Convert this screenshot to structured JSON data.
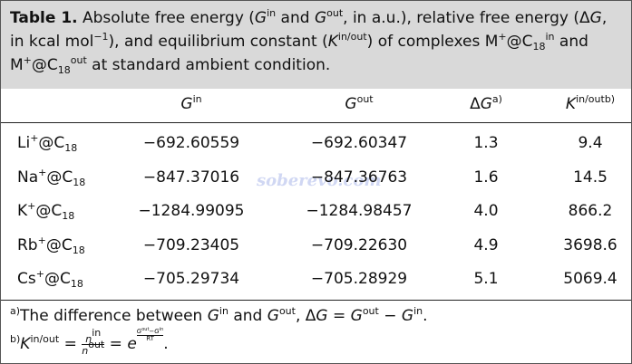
{
  "caption": {
    "label": "Table 1.",
    "parts": [
      " Absolute free energy (",
      "G",
      "in",
      " and ",
      "G",
      "out",
      ", in a.u.), relative free energy (Δ",
      "G",
      ", in kcal mol",
      "−1",
      "), and equilibrium constant (",
      "K",
      "in/out",
      ") of complexes M",
      "+",
      "@C",
      "18",
      "in",
      " and M",
      "+",
      "@C",
      "18",
      "out",
      " at standard ambient condition."
    ]
  },
  "table": {
    "header": [
      [
        "G",
        "in"
      ],
      [
        "G",
        "out"
      ],
      [
        "Δ",
        "G",
        "a)"
      ],
      [
        "K",
        "in/out",
        "b)"
      ]
    ],
    "rows": [
      [
        [
          "Li",
          "+",
          "@C",
          "18"
        ],
        "−692.60559",
        "−692.60347",
        "1.3",
        "9.4"
      ],
      [
        [
          "Na",
          "+",
          "@C",
          "18"
        ],
        "−847.37016",
        "−847.36763",
        "1.6",
        "14.5"
      ],
      [
        [
          "K",
          "+",
          "@C",
          "18"
        ],
        "−1284.99095",
        "−1284.98457",
        "4.0",
        "866.2"
      ],
      [
        [
          "Rb",
          "+",
          "@C",
          "18"
        ],
        "−709.23405",
        "−709.22630",
        "4.9",
        "3698.6"
      ],
      [
        [
          "Cs",
          "+",
          "@C",
          "18"
        ],
        "−705.29734",
        "−705.28929",
        "5.1",
        "5069.4"
      ]
    ]
  },
  "footnotes": {
    "a": [
      "a)",
      "The difference between ",
      "G",
      "in",
      " and ",
      "G",
      "out",
      ", Δ",
      "G",
      " = ",
      "G",
      "out",
      " − ",
      "G",
      "in",
      "."
    ],
    "b": {
      "lhs": [
        "b)",
        "K",
        "in/out",
        " = "
      ],
      "num": [
        "n",
        "in"
      ],
      "den": [
        "n",
        "out"
      ],
      "mid": [
        " = ",
        "e"
      ],
      "exp_num": [
        "G",
        "out",
        "−",
        "G",
        "in"
      ],
      "exp_den": "RT",
      "end": "."
    }
  },
  "watermark": "soberevo.com"
}
